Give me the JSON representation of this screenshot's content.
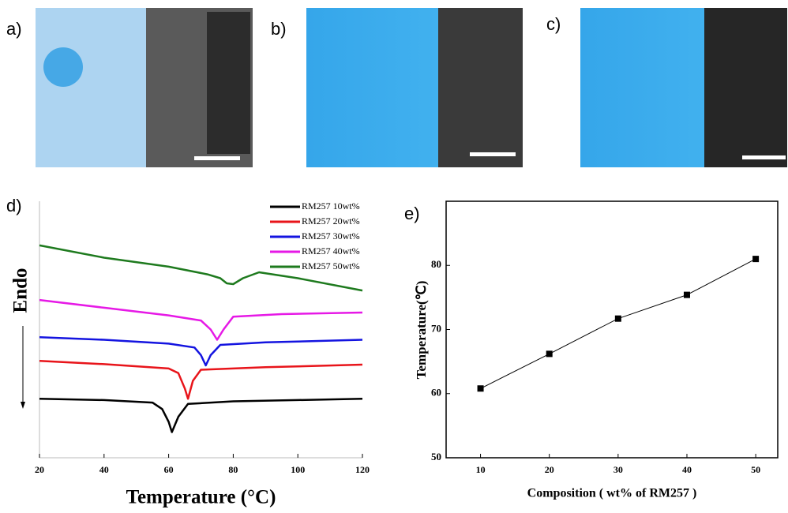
{
  "panels": [
    "a)",
    "b)",
    "c)"
  ],
  "chart_data": [
    {
      "type": "line",
      "label": "d)",
      "xlabel": "Temperature (°C)",
      "ylabel": "Endo",
      "xlim": [
        20,
        120
      ],
      "xticks": [
        20,
        40,
        60,
        80,
        100,
        120
      ],
      "ylim": [
        0,
        100
      ],
      "markers": false,
      "series": [
        {
          "name": "RM257 10wt%",
          "color": "#000000",
          "x": [
            20,
            40,
            55,
            58,
            60,
            61,
            63,
            66,
            80,
            100,
            120
          ],
          "values": [
            23,
            22.5,
            21.5,
            19,
            14,
            10,
            16,
            21,
            22,
            22.5,
            23
          ]
        },
        {
          "name": "RM257 20wt%",
          "color": "#e8141a",
          "x": [
            20,
            40,
            60,
            63,
            65,
            66,
            67.5,
            70,
            90,
            120
          ],
          "values": [
            37.8,
            36.5,
            34.8,
            33,
            27,
            23,
            30,
            34.3,
            35.3,
            36.3
          ]
        },
        {
          "name": "RM257 30wt%",
          "color": "#1414e0",
          "x": [
            20,
            40,
            60,
            68,
            70,
            71.5,
            73,
            76,
            90,
            120
          ],
          "values": [
            47,
            46,
            44.5,
            43,
            40,
            36,
            40,
            44,
            45,
            46
          ]
        },
        {
          "name": "RM257 40wt%",
          "color": "#e619e6",
          "x": [
            20,
            40,
            60,
            70,
            73,
            75,
            77,
            80,
            95,
            120
          ],
          "values": [
            61.5,
            58.5,
            55.5,
            53.5,
            50,
            46,
            50,
            55,
            56,
            56.6
          ]
        },
        {
          "name": "RM257 50wt%",
          "color": "#1e7a1e",
          "x": [
            20,
            40,
            60,
            72,
            76,
            78,
            80,
            83,
            88,
            100,
            120
          ],
          "values": [
            82.8,
            78,
            74.5,
            71.5,
            70,
            68,
            67.7,
            70,
            72.3,
            70,
            65.2
          ]
        }
      ]
    },
    {
      "type": "line",
      "label": "e)",
      "xlabel": "Composition ( wt% of RM257 )",
      "ylabel": "Temperature(℃)",
      "xlim": [
        5,
        53.2
      ],
      "xticks": [
        10,
        20,
        30,
        40,
        50
      ],
      "ylim": [
        50,
        90
      ],
      "yticks": [
        50,
        60,
        70,
        80
      ],
      "markers": true,
      "series": [
        {
          "color": "#000000",
          "x": [
            10,
            20,
            30,
            40,
            50
          ],
          "values": [
            60.8,
            66.2,
            71.7,
            75.4,
            81.0
          ]
        }
      ]
    }
  ]
}
